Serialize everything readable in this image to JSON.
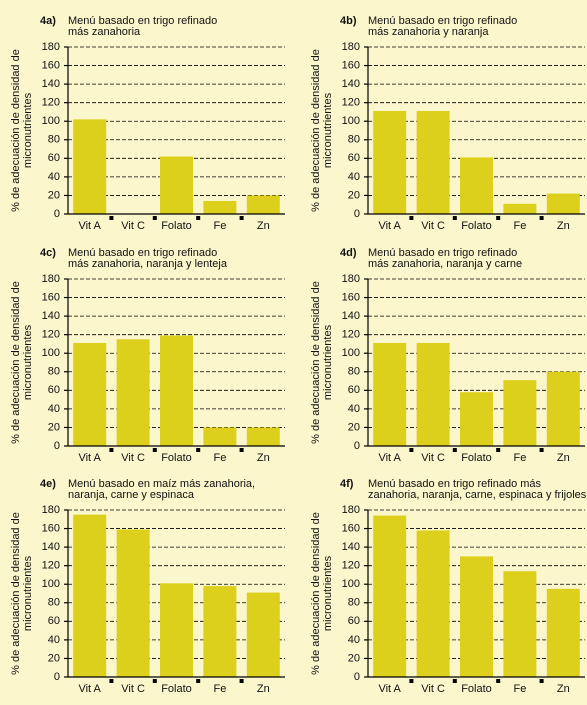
{
  "chart_data": [
    {
      "type": "bar",
      "panel": "4a)",
      "title": [
        "Menú basado en trigo refinado",
        "más zanahoria"
      ],
      "ylabel": [
        "% de adecuación de densidad de",
        "micronutrientes"
      ],
      "categories": [
        "Vit A",
        "Vit C",
        "Folato",
        "Fe",
        "Zn"
      ],
      "values": [
        102,
        0,
        62,
        14,
        20
      ],
      "color": "#dcd01c",
      "ylim": [
        0,
        180
      ],
      "yticks": [
        0,
        20,
        40,
        60,
        80,
        100,
        120,
        140,
        160,
        180
      ],
      "grid": true
    },
    {
      "type": "bar",
      "panel": "4b)",
      "title": [
        "Menú basado en trigo refinado",
        "más zanahoria y naranja"
      ],
      "ylabel": [
        "% de adecuación de densidad de",
        "micronutrientes"
      ],
      "categories": [
        "Vit A",
        "Vit C",
        "Folato",
        "Fe",
        "Zn"
      ],
      "values": [
        111,
        111,
        61,
        11,
        22
      ],
      "color": "#dcd01c",
      "ylim": [
        0,
        180
      ],
      "yticks": [
        0,
        20,
        40,
        60,
        80,
        100,
        120,
        140,
        160,
        180
      ],
      "grid": true
    },
    {
      "type": "bar",
      "panel": "4c)",
      "title": [
        "Menú basado en trigo refinado",
        "más zanahoria, naranja y lenteja"
      ],
      "ylabel": [
        "% de adecuación de densidad de",
        "micronutrientes"
      ],
      "categories": [
        "Vit A",
        "Vit C",
        "Folato",
        "Fe",
        "Zn"
      ],
      "values": [
        111,
        115,
        119,
        20,
        20
      ],
      "color": "#dcd01c",
      "ylim": [
        0,
        180
      ],
      "yticks": [
        0,
        20,
        40,
        60,
        80,
        100,
        120,
        140,
        160,
        180
      ],
      "grid": true
    },
    {
      "type": "bar",
      "panel": "4d)",
      "title": [
        "Menú basado en trigo refinado",
        "más zanahoria, naranja y carne"
      ],
      "ylabel": [
        "% de adecuación de densidad de",
        "micronutrientes"
      ],
      "categories": [
        "Vit A",
        "Vit C",
        "Folato",
        "Fe",
        "Zn"
      ],
      "values": [
        111,
        111,
        58,
        71,
        80
      ],
      "color": "#dcd01c",
      "ylim": [
        0,
        180
      ],
      "yticks": [
        0,
        20,
        40,
        60,
        80,
        100,
        120,
        140,
        160,
        180
      ],
      "grid": true
    },
    {
      "type": "bar",
      "panel": "4e)",
      "title": [
        "Menú basado en maíz más zanahoria,",
        "naranja, carne y espinaca"
      ],
      "ylabel": [
        "% de adecuación de densidad de",
        "micronutrientes"
      ],
      "categories": [
        "Vit A",
        "Vit C",
        "Folato",
        "Fe",
        "Zn"
      ],
      "values": [
        175,
        159,
        101,
        98,
        91
      ],
      "color": "#dcd01c",
      "ylim": [
        0,
        180
      ],
      "yticks": [
        0,
        20,
        40,
        60,
        80,
        100,
        120,
        140,
        160,
        180
      ],
      "grid": true
    },
    {
      "type": "bar",
      "panel": "4f)",
      "title": [
        "Menú basado en trigo refinado más",
        "zanahoria, naranja, carne, espinaca y frijoles"
      ],
      "ylabel": [
        "% de adecuación de densidad de",
        "micronutrientes"
      ],
      "categories": [
        "Vit A",
        "Vit C",
        "Folato",
        "Fe",
        "Zn"
      ],
      "values": [
        174,
        158,
        130,
        114,
        95
      ],
      "color": "#dcd01c",
      "ylim": [
        0,
        180
      ],
      "yticks": [
        0,
        20,
        40,
        60,
        80,
        100,
        120,
        140,
        160,
        180
      ],
      "grid": true
    }
  ]
}
